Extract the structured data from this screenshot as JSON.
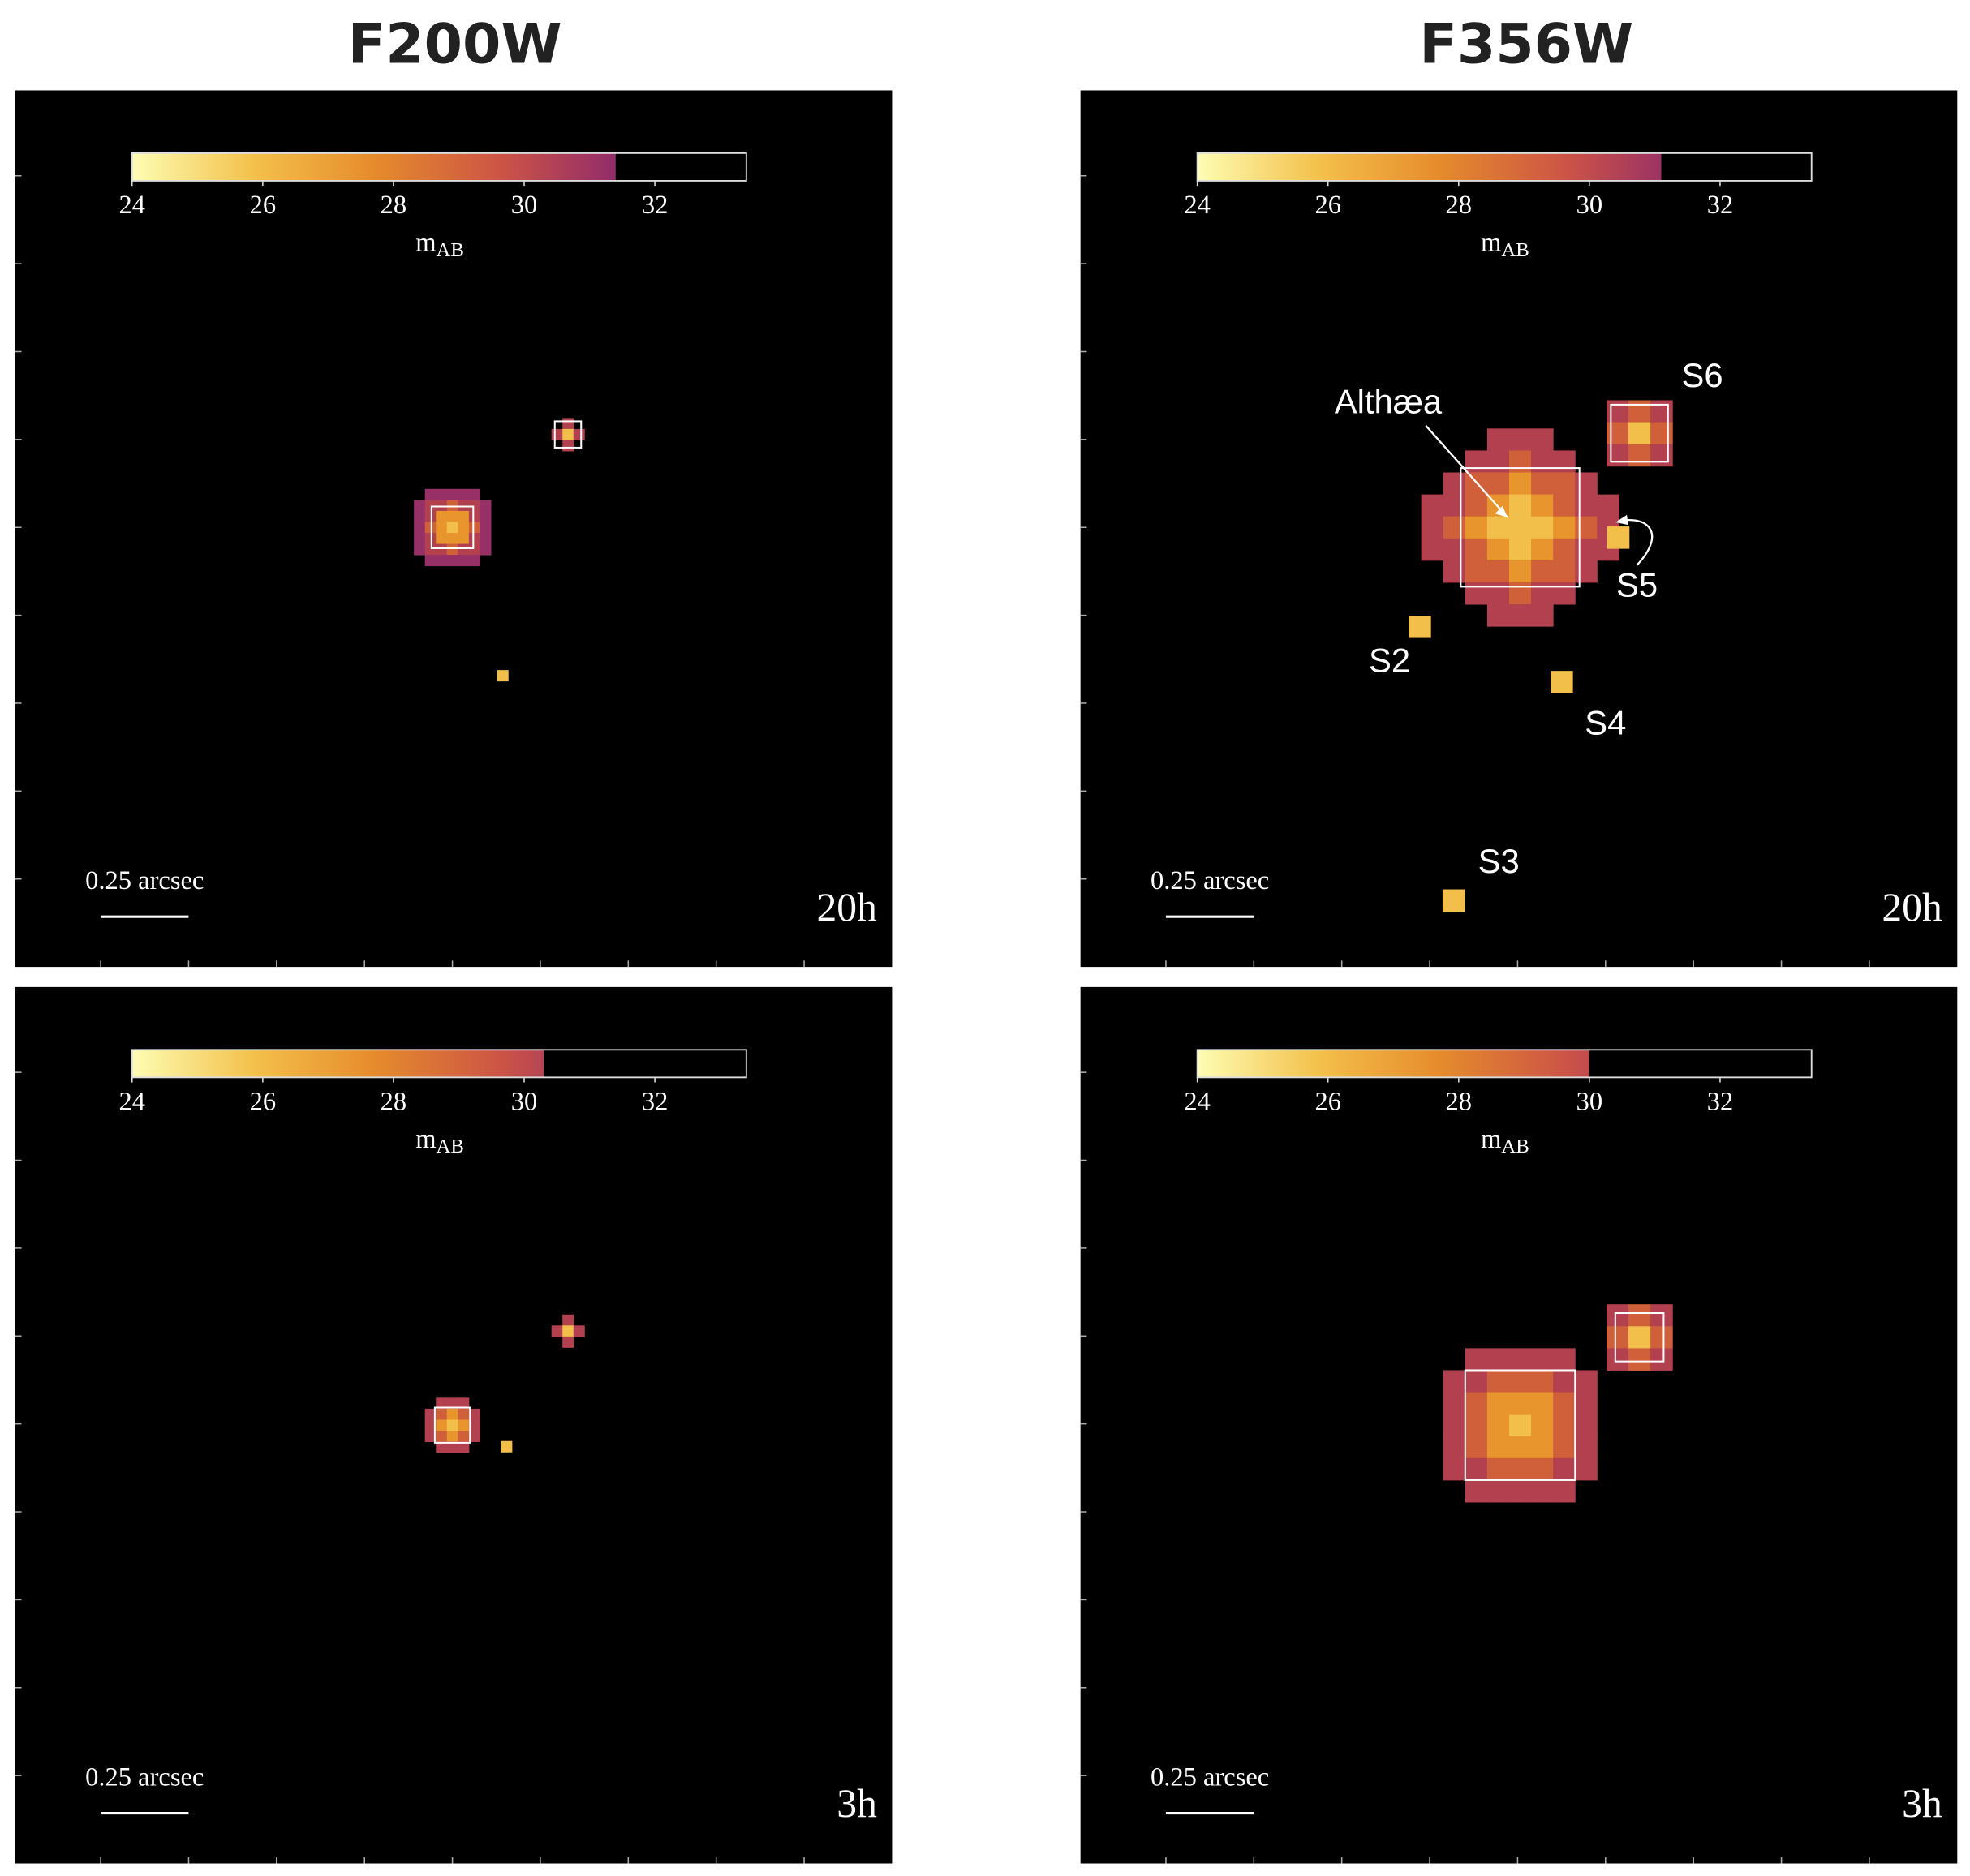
{
  "columns": [
    "F200W",
    "F356W"
  ],
  "panels": [
    {
      "colorbar": {
        "label": "m",
        "label_sub": "AB",
        "range": [
          24,
          33.4
        ],
        "ticks": [
          24,
          26,
          28,
          30,
          32
        ],
        "depth": 31.4
      },
      "scale_bar": "0.25 arcsec",
      "exposure": "20h"
    },
    {
      "colorbar": {
        "label": "m",
        "label_sub": "AB",
        "range": [
          24,
          33.4
        ],
        "ticks": [
          24,
          26,
          28,
          30,
          32
        ],
        "depth": 31.1
      },
      "scale_bar": "0.25 arcsec",
      "exposure": "20h",
      "annotations": [
        "Althæa",
        "S6",
        "S5",
        "S2",
        "S4",
        "S3"
      ]
    },
    {
      "colorbar": {
        "label": "m",
        "label_sub": "AB",
        "range": [
          24,
          33.4
        ],
        "ticks": [
          24,
          26,
          28,
          30,
          32
        ],
        "depth": 30.3
      },
      "scale_bar": "0.25 arcsec",
      "exposure": "3h"
    },
    {
      "colorbar": {
        "label": "m",
        "label_sub": "AB",
        "range": [
          24,
          33.4
        ],
        "ticks": [
          24,
          26,
          28,
          30,
          32
        ],
        "depth": 30.0
      },
      "scale_bar": "0.25 arcsec",
      "exposure": "3h"
    }
  ]
}
